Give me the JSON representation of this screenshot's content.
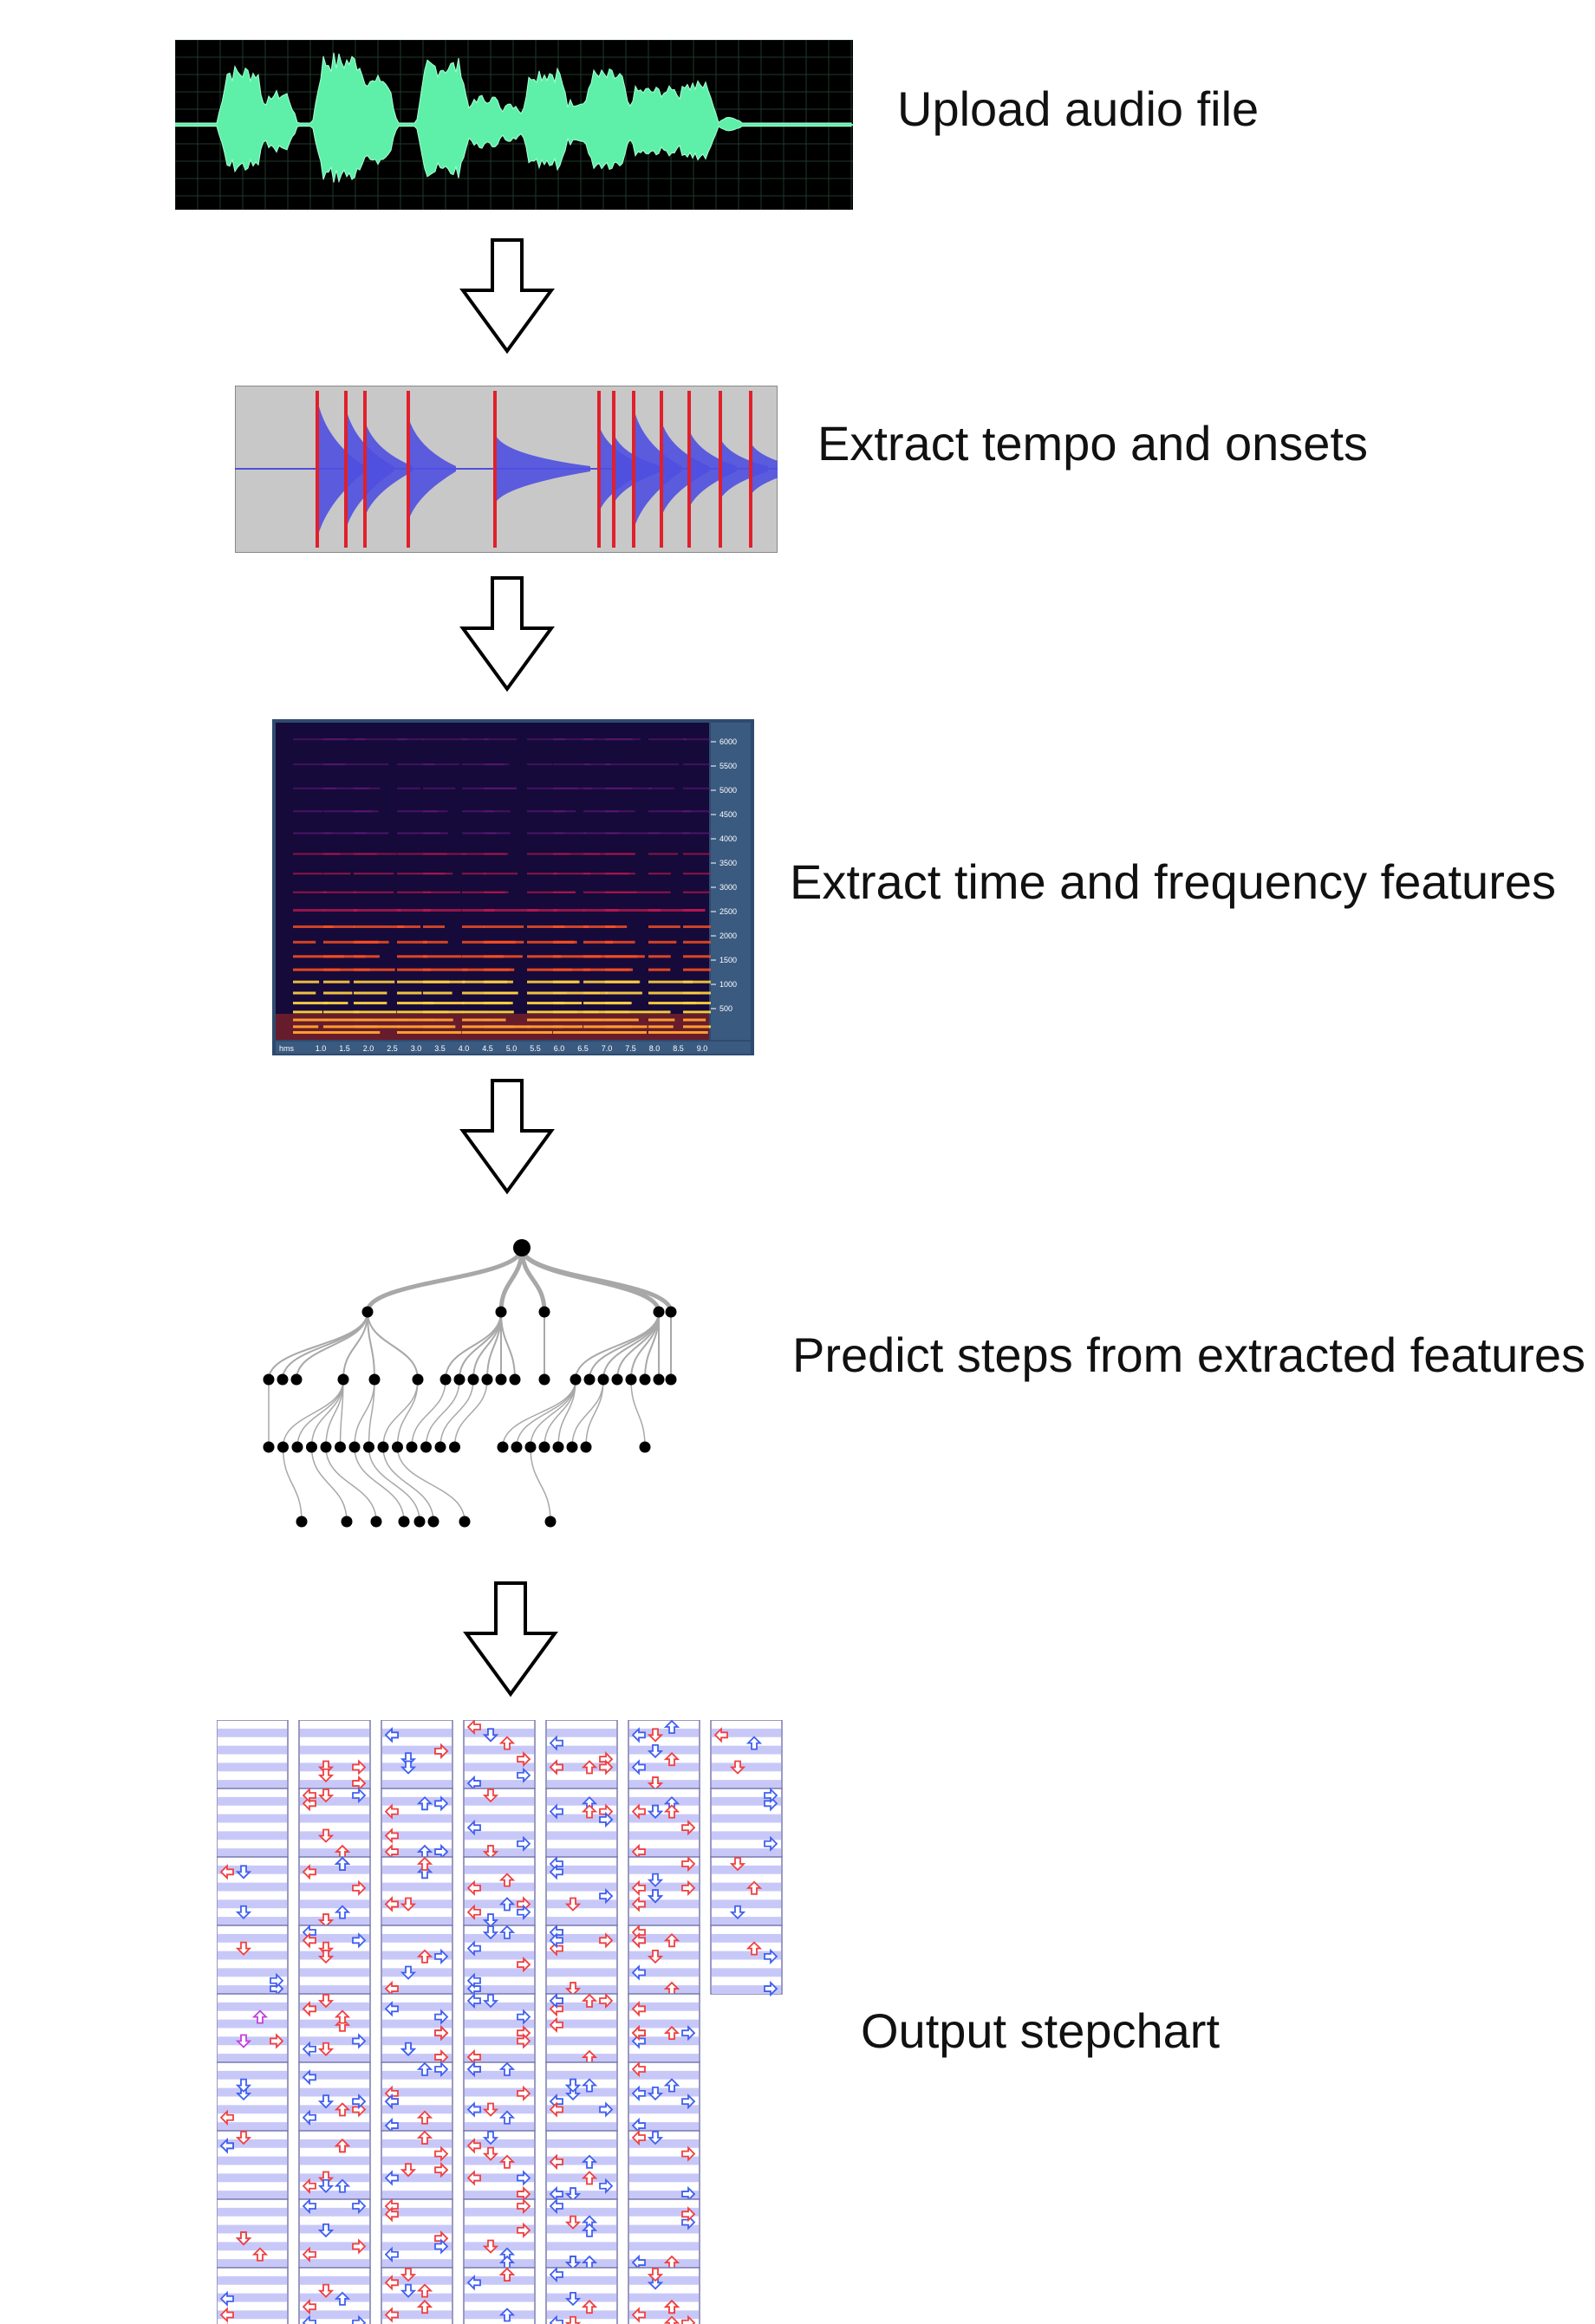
{
  "steps": [
    {
      "id": "upload",
      "label": "Upload audio file"
    },
    {
      "id": "onsets",
      "label": "Extract tempo and onsets"
    },
    {
      "id": "features",
      "label": "Extract time and frequency features"
    },
    {
      "id": "predict",
      "label": "Predict steps from extracted features"
    },
    {
      "id": "output",
      "label": "Output stepchart"
    }
  ],
  "colors": {
    "waveform_bg": "#000000",
    "waveform_fg": "#5ef0a8",
    "onset_bg": "#c8c8c8",
    "onset_wave": "#4f4fe0",
    "onset_marker": "#e0202a",
    "spectrogram_bg": "#1a0a40",
    "spectrogram_frame": "#2e4a6e",
    "tree_node": "#000000",
    "tree_edge": "#a8a8a8",
    "chart_band": "#c8c8f8",
    "arrow_red": "#f04040",
    "arrow_blue": "#4060f0",
    "arrow_purple": "#c040e0"
  },
  "spectrogram": {
    "freq_ticks": [
      "6000",
      "5500",
      "5000",
      "4500",
      "4000",
      "3500",
      "3000",
      "2500",
      "2000",
      "1500",
      "1000",
      "500"
    ],
    "time_unit": "hms",
    "time_ticks": [
      "1.0",
      "1.5",
      "2.0",
      "2.5",
      "3.0",
      "3.5",
      "4.0",
      "4.5",
      "5.0",
      "5.5",
      "6.0",
      "6.5",
      "7.0",
      "7.5",
      "8.0",
      "8.5",
      "9.0"
    ]
  }
}
